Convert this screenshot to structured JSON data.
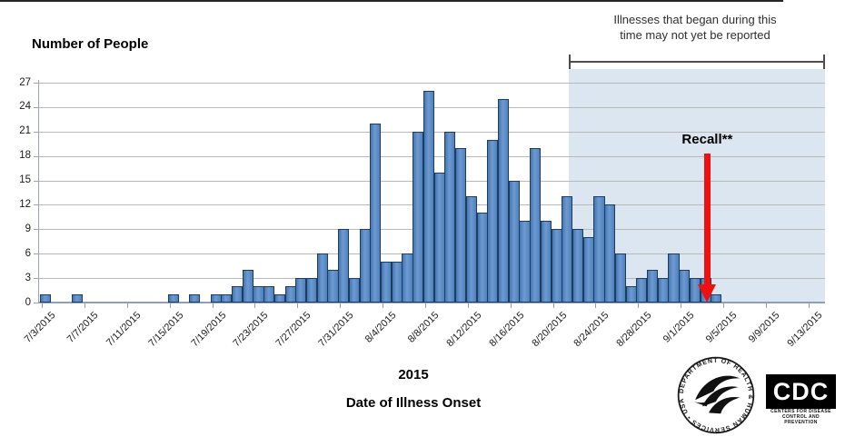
{
  "labels": {
    "y_axis_title": "Number of People",
    "annotation_line1": "Illnesses that began during this",
    "annotation_line2": "time may not yet be reported",
    "recall": "Recall**",
    "year": "2015",
    "x_axis_title": "Date of Illness Onset"
  },
  "logos": {
    "hhs_seal_text": "DEPARTMENT OF HEALTH & HUMAN SERVICES • USA",
    "cdc_acronym": "CDC",
    "cdc_name_line1": "CENTERS FOR DISEASE",
    "cdc_name_line2": "CONTROL AND PREVENTION"
  },
  "chart_data": {
    "type": "bar",
    "title": "",
    "xlabel": "Date of Illness Onset",
    "ylabel": "Number of People",
    "x_axis_year": "2015",
    "ylim": [
      0,
      27
    ],
    "grid": true,
    "legend": false,
    "y_ticks": [
      0,
      3,
      6,
      9,
      12,
      15,
      18,
      21,
      24,
      27
    ],
    "x_tick_labels": [
      "7/3/2015",
      "7/7/2015",
      "7/11/2015",
      "7/15/2015",
      "7/19/2015",
      "7/23/2015",
      "7/27/2015",
      "7/31/2015",
      "8/4/2015",
      "8/8/2015",
      "8/12/2015",
      "8/16/2015",
      "8/20/2015",
      "8/24/2015",
      "8/28/2015",
      "9/1/2015",
      "9/5/2015",
      "9/9/2015",
      "9/13/2015"
    ],
    "dates": [
      "7/3/2015",
      "7/4/2015",
      "7/5/2015",
      "7/6/2015",
      "7/7/2015",
      "7/8/2015",
      "7/9/2015",
      "7/10/2015",
      "7/11/2015",
      "7/12/2015",
      "7/13/2015",
      "7/14/2015",
      "7/15/2015",
      "7/16/2015",
      "7/17/2015",
      "7/18/2015",
      "7/19/2015",
      "7/20/2015",
      "7/21/2015",
      "7/22/2015",
      "7/23/2015",
      "7/24/2015",
      "7/25/2015",
      "7/26/2015",
      "7/27/2015",
      "7/28/2015",
      "7/29/2015",
      "7/30/2015",
      "7/31/2015",
      "8/1/2015",
      "8/2/2015",
      "8/3/2015",
      "8/4/2015",
      "8/5/2015",
      "8/6/2015",
      "8/7/2015",
      "8/8/2015",
      "8/9/2015",
      "8/10/2015",
      "8/11/2015",
      "8/12/2015",
      "8/13/2015",
      "8/14/2015",
      "8/15/2015",
      "8/16/2015",
      "8/17/2015",
      "8/18/2015",
      "8/19/2015",
      "8/20/2015",
      "8/21/2015",
      "8/22/2015",
      "8/23/2015",
      "8/24/2015",
      "8/25/2015",
      "8/26/2015",
      "8/27/2015",
      "8/28/2015",
      "8/29/2015",
      "8/30/2015",
      "8/31/2015",
      "9/1/2015",
      "9/2/2015",
      "9/3/2015",
      "9/4/2015",
      "9/5/2015",
      "9/6/2015",
      "9/7/2015",
      "9/8/2015",
      "9/9/2015",
      "9/10/2015",
      "9/11/2015",
      "9/12/2015",
      "9/13/2015",
      "9/14/2015"
    ],
    "values": [
      1,
      0,
      0,
      1,
      0,
      0,
      0,
      0,
      0,
      0,
      0,
      0,
      1,
      0,
      1,
      0,
      1,
      1,
      2,
      4,
      2,
      2,
      1,
      2,
      3,
      3,
      6,
      4,
      9,
      3,
      9,
      22,
      5,
      5,
      6,
      21,
      26,
      16,
      21,
      19,
      13,
      11,
      20,
      25,
      15,
      10,
      19,
      10,
      9,
      13,
      9,
      8,
      13,
      12,
      6,
      2,
      3,
      4,
      3,
      6,
      4,
      3,
      3,
      1,
      0,
      0,
      0,
      0,
      0,
      0,
      0,
      0,
      0,
      0
    ],
    "shaded_region": {
      "start": "8/22/2015",
      "end": "9/14/2015",
      "note": "Illnesses that began during this time may not yet be reported",
      "color": "#dce6f1"
    },
    "recall_annotation": {
      "date": "9/4/2015",
      "label": "Recall**"
    },
    "colors": {
      "bar_fill": "#4f81bd",
      "bar_border": "#1c3d5f",
      "shade": "#dce6f1",
      "gridline": "#b8b8b8",
      "axis": "#8ea0b5",
      "arrow": "#ee1111"
    }
  }
}
